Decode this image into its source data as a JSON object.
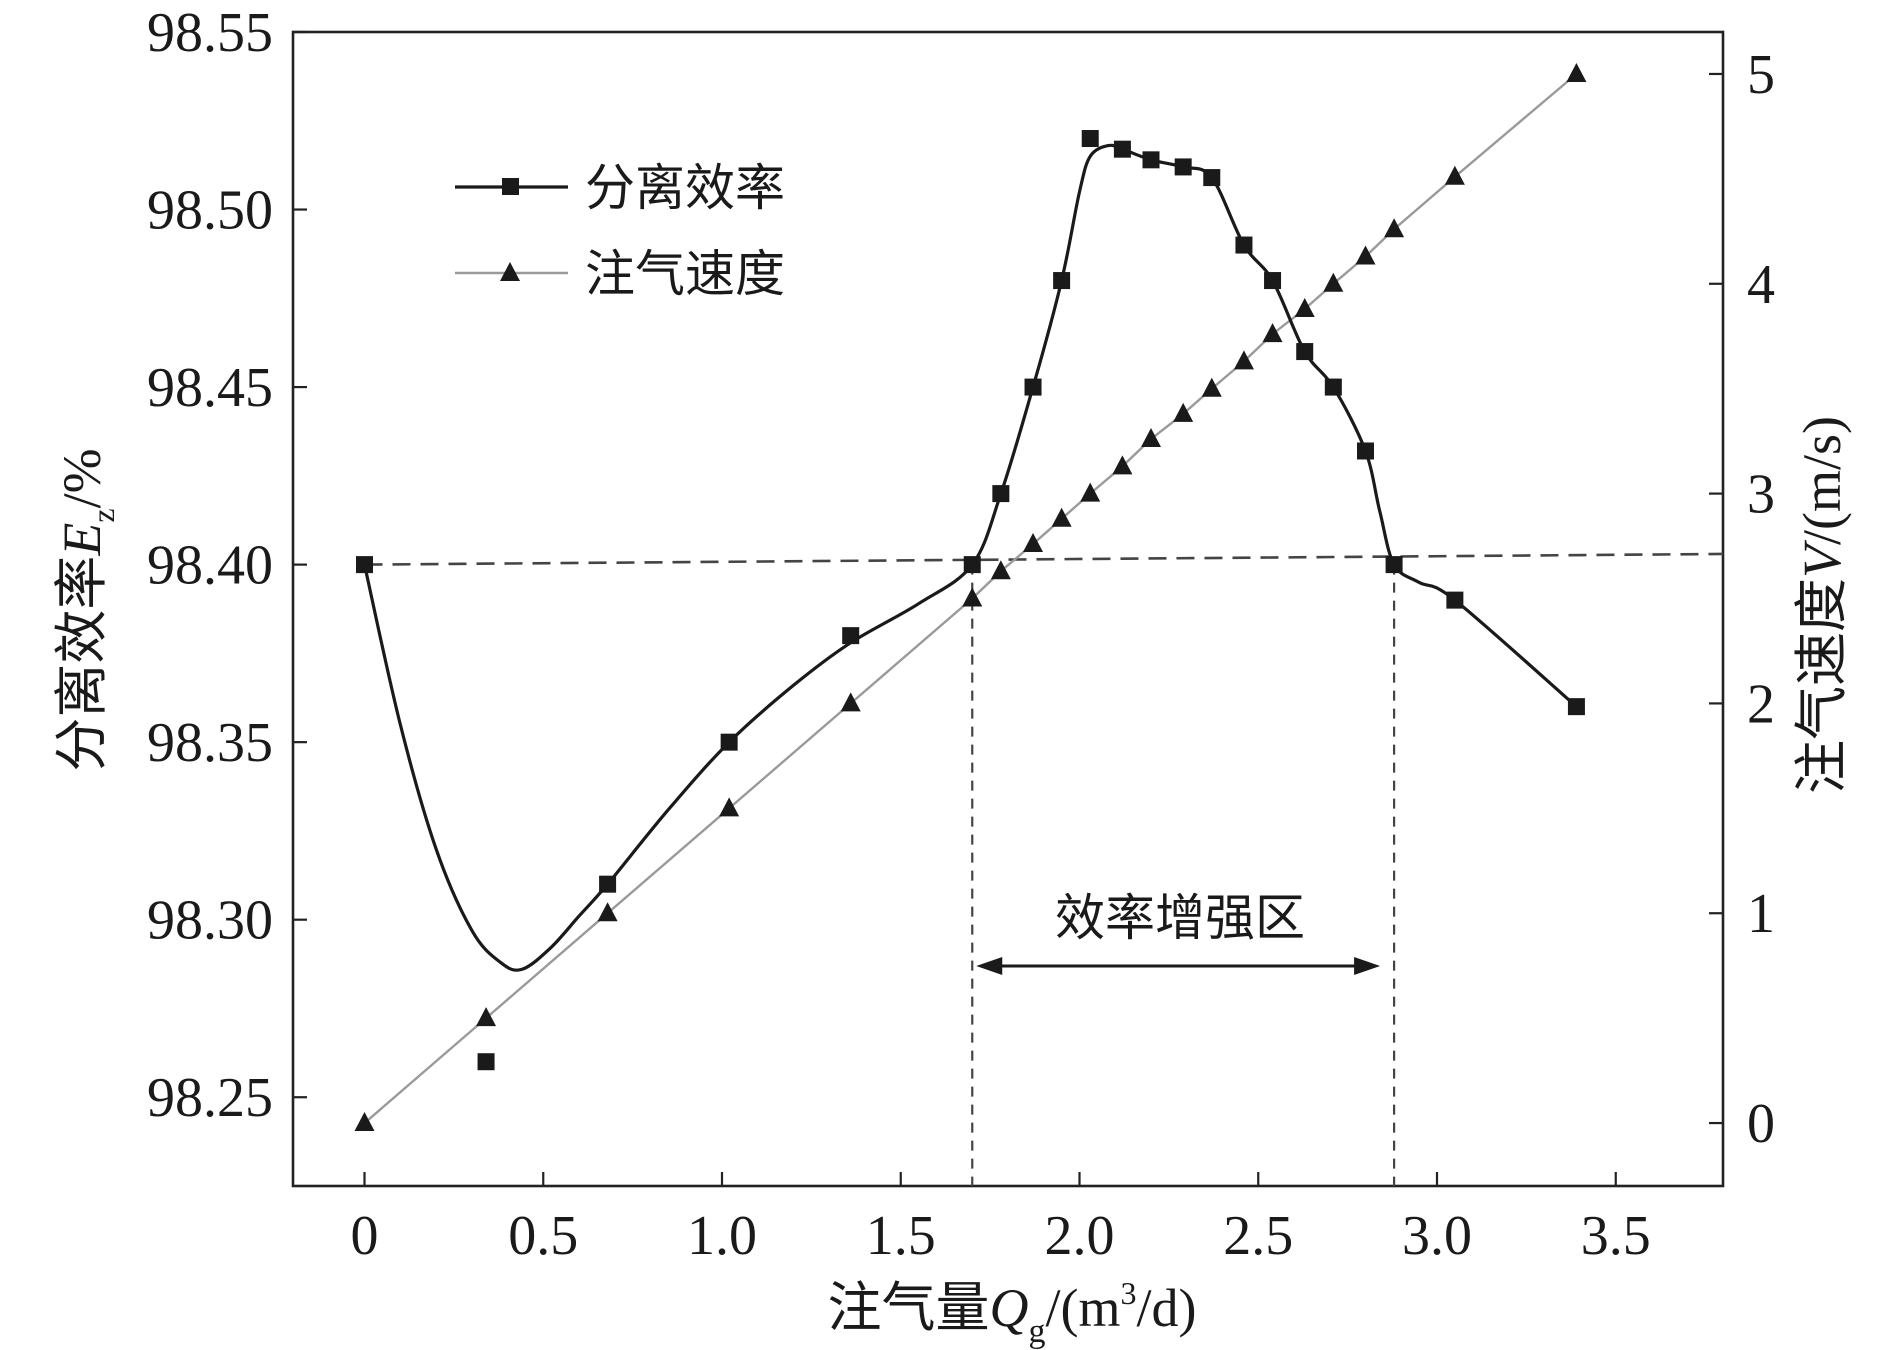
{
  "chart_data": {
    "type": "line",
    "title": "",
    "xlabel": {
      "prefix": "注气量",
      "symbol": "Q",
      "subscript": "g",
      "unit_open": "/(m",
      "unit_sup": "3",
      "unit_close": "/d)"
    },
    "ylabel_left": {
      "prefix": "分离效率",
      "symbol": "E",
      "subscript": "z",
      "unit": "/%"
    },
    "ylabel_right": {
      "prefix": "注气速度",
      "symbol": "V",
      "unit": "/(m/s)"
    },
    "xlim": [
      -0.2,
      3.8
    ],
    "ylim_left": [
      98.225,
      98.55
    ],
    "ylim_right": [
      -0.3,
      5.2
    ],
    "x_ticks": [
      0,
      0.5,
      1.0,
      1.5,
      2.0,
      2.5,
      3.0,
      3.5
    ],
    "x_tick_labels": [
      "0",
      "0.5",
      "1.0",
      "1.5",
      "2.0",
      "2.5",
      "3.0",
      "3.5"
    ],
    "y_left_ticks": [
      98.25,
      98.3,
      98.35,
      98.4,
      98.45,
      98.5,
      98.55
    ],
    "y_left_tick_labels": [
      "98.25",
      "98.30",
      "98.35",
      "98.40",
      "98.45",
      "98.50",
      "98.55"
    ],
    "y_right_ticks": [
      0,
      1,
      2,
      3,
      4,
      5
    ],
    "y_right_tick_labels": [
      "0",
      "1",
      "2",
      "3",
      "4",
      "5"
    ],
    "series": [
      {
        "name": "分离效率",
        "axis": "left",
        "marker": "square",
        "color": "#1a1a1a",
        "x": [
          0,
          0.34,
          0.68,
          1.02,
          1.36,
          1.7,
          1.78,
          1.87,
          1.95,
          2.03,
          2.12,
          2.2,
          2.29,
          2.37,
          2.46,
          2.54,
          2.63,
          2.71,
          2.8,
          2.88,
          3.05,
          3.39
        ],
        "values": [
          98.4,
          98.26,
          98.31,
          98.35,
          98.38,
          98.4,
          98.42,
          98.45,
          98.48,
          98.52,
          98.517,
          98.514,
          98.512,
          98.509,
          98.49,
          98.48,
          98.46,
          98.45,
          98.432,
          98.4,
          98.39,
          98.36
        ],
        "curve": [
          [
            0,
            98.4
          ],
          [
            0.1,
            98.355
          ],
          [
            0.2,
            98.32
          ],
          [
            0.3,
            98.297
          ],
          [
            0.38,
            98.288
          ],
          [
            0.44,
            98.286
          ],
          [
            0.52,
            98.292
          ],
          [
            0.6,
            98.301
          ],
          [
            0.68,
            98.31
          ],
          [
            0.85,
            98.331
          ],
          [
            1.02,
            98.35
          ],
          [
            1.2,
            98.366
          ],
          [
            1.36,
            98.378
          ],
          [
            1.55,
            98.389
          ],
          [
            1.7,
            98.4
          ],
          [
            1.78,
            98.42
          ],
          [
            1.87,
            98.45
          ],
          [
            1.95,
            98.48
          ],
          [
            2.0,
            98.505
          ],
          [
            2.03,
            98.515
          ],
          [
            2.08,
            98.518
          ],
          [
            2.12,
            98.517
          ],
          [
            2.2,
            98.514
          ],
          [
            2.29,
            98.512
          ],
          [
            2.37,
            98.509
          ],
          [
            2.46,
            98.49
          ],
          [
            2.54,
            98.48
          ],
          [
            2.63,
            98.46
          ],
          [
            2.71,
            98.45
          ],
          [
            2.8,
            98.432
          ],
          [
            2.84,
            98.415
          ],
          [
            2.88,
            98.4
          ],
          [
            2.95,
            98.395
          ],
          [
            3.05,
            98.39
          ],
          [
            3.39,
            98.36
          ]
        ]
      },
      {
        "name": "注气速度",
        "axis": "right",
        "marker": "triangle",
        "color": "#9a9a9a",
        "x": [
          0,
          0.34,
          0.68,
          1.02,
          1.36,
          1.7,
          1.78,
          1.87,
          1.95,
          2.03,
          2.12,
          2.2,
          2.29,
          2.37,
          2.46,
          2.54,
          2.63,
          2.71,
          2.8,
          2.88,
          3.05,
          3.39
        ],
        "values": [
          0,
          0.5,
          1.0,
          1.5,
          2.0,
          2.5,
          2.63,
          2.76,
          2.88,
          3.0,
          3.13,
          3.26,
          3.38,
          3.5,
          3.63,
          3.76,
          3.88,
          4.0,
          4.13,
          4.26,
          4.51,
          5.0
        ]
      }
    ],
    "reference_line": {
      "axis": "left",
      "value": 98.4,
      "from_x": 0,
      "to_x": 3.8,
      "end_value": 98.403
    },
    "region": {
      "label": "效率增强区",
      "x_start": 1.7,
      "x_end": 2.88
    },
    "legend": {
      "position": "top-left",
      "items": [
        "分离效率",
        "注气速度"
      ]
    }
  }
}
